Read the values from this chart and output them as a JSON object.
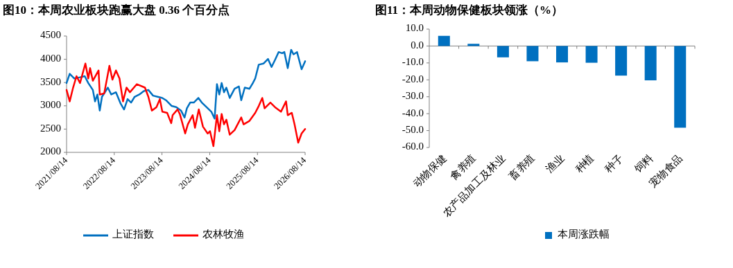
{
  "chart_data": [
    {
      "type": "line",
      "title": "图10：本周农业板块跑赢大盘 0.36 个百分点",
      "legend": "bottom",
      "line_style": "solid",
      "xlim": [
        "2021-08-14",
        "2026-08-14"
      ],
      "xticks": [
        {
          "value": "2021-08-14",
          "label": "2021/08/14"
        },
        {
          "value": "2022-08-14",
          "label": "2022/08/14"
        },
        {
          "value": "2023-08-14",
          "label": "2023/08/14"
        },
        {
          "value": "2024-08-14",
          "label": "2024/08/14"
        },
        {
          "value": "2025-08-14",
          "label": "2025/08/14"
        },
        {
          "value": "2026-08-14",
          "label": "2026/08/14"
        }
      ],
      "ylim": [
        2000,
        4500
      ],
      "yticks": [
        2000,
        2500,
        3000,
        3500,
        4000,
        4500
      ],
      "series": [
        {
          "name": "上证指数",
          "color": "#0070c0",
          "x": [
            "2021-08-14",
            "2021-09-07",
            "2021-10-12",
            "2021-11-25",
            "2021-12-31",
            "2022-01-27",
            "2022-03-03",
            "2022-03-20",
            "2022-04-07",
            "2022-04-25",
            "2022-05-12",
            "2022-06-26",
            "2022-07-22",
            "2022-08-27",
            "2022-10-02",
            "2022-10-28",
            "2022-11-24",
            "2022-12-21",
            "2023-01-17",
            "2023-02-22",
            "2023-03-28",
            "2023-05-02",
            "2023-06-07",
            "2023-07-12",
            "2023-08-17",
            "2023-09-14",
            "2023-10-28",
            "2023-12-02",
            "2024-01-07",
            "2024-02-03",
            "2024-02-21",
            "2024-03-17",
            "2024-04-14",
            "2024-05-19",
            "2024-06-14",
            "2024-07-20",
            "2024-08-26",
            "2024-09-20",
            "2024-10-08",
            "2024-10-26",
            "2024-11-13",
            "2024-12-01",
            "2024-12-19",
            "2025-01-14",
            "2025-02-20",
            "2025-03-25",
            "2025-04-12",
            "2025-05-09",
            "2025-06-14",
            "2025-07-10",
            "2025-07-28",
            "2025-08-24",
            "2025-09-29",
            "2025-11-03",
            "2025-11-30",
            "2025-12-26",
            "2026-01-23",
            "2026-02-19",
            "2026-03-08",
            "2026-04-03",
            "2026-04-29",
            "2026-05-17",
            "2026-06-13",
            "2026-07-18",
            "2026-08-14"
          ],
          "values": [
            3490,
            3687,
            3588,
            3613,
            3637,
            3490,
            3341,
            3095,
            3243,
            2898,
            3194,
            3391,
            3243,
            3292,
            3046,
            2922,
            3144,
            3070,
            3194,
            3243,
            3317,
            3341,
            3218,
            3194,
            3169,
            3120,
            2996,
            2972,
            2898,
            2750,
            2947,
            3070,
            3070,
            3169,
            3070,
            2972,
            2873,
            2725,
            3465,
            3243,
            3490,
            3292,
            3391,
            3169,
            3366,
            3415,
            3120,
            3391,
            3366,
            3490,
            3588,
            3884,
            3908,
            4007,
            3834,
            3982,
            4155,
            4130,
            4155,
            3810,
            4204,
            4106,
            4155,
            3785,
            3958
          ]
        },
        {
          "name": "农林牧渔",
          "color": "#ff0000",
          "x": [
            "2021-08-14",
            "2021-09-07",
            "2021-10-03",
            "2021-10-29",
            "2021-11-25",
            "2022-01-05",
            "2022-01-27",
            "2022-02-10",
            "2022-03-03",
            "2022-04-16",
            "2022-04-25",
            "2022-05-29",
            "2022-07-08",
            "2022-07-31",
            "2022-08-27",
            "2022-09-23",
            "2022-10-20",
            "2022-11-16",
            "2022-12-12",
            "2023-02-03",
            "2023-04-06",
            "2023-05-02",
            "2023-05-29",
            "2023-07-03",
            "2023-07-29",
            "2023-08-17",
            "2023-09-23",
            "2023-10-24",
            "2023-11-04",
            "2023-12-11",
            "2023-12-29",
            "2024-02-08",
            "2024-02-28",
            "2024-04-05",
            "2024-04-23",
            "2024-05-22",
            "2024-06-23",
            "2024-07-29",
            "2024-08-16",
            "2024-09-11",
            "2024-10-08",
            "2024-10-26",
            "2024-11-13",
            "2024-12-01",
            "2024-12-19",
            "2025-01-14",
            "2025-02-20",
            "2025-04-12",
            "2025-04-30",
            "2025-06-14",
            "2025-07-28",
            "2025-08-24",
            "2025-09-20",
            "2025-10-08",
            "2025-11-21",
            "2025-12-26",
            "2026-02-10",
            "2026-03-21",
            "2026-04-03",
            "2026-05-04",
            "2026-05-25",
            "2026-06-22",
            "2026-07-18",
            "2026-08-14"
          ],
          "values": [
            3341,
            3095,
            3391,
            3637,
            3490,
            3908,
            3588,
            3810,
            3539,
            3760,
            3243,
            3267,
            3859,
            3563,
            3760,
            3588,
            3095,
            3391,
            3292,
            3465,
            3391,
            3194,
            2898,
            2972,
            3144,
            2873,
            2849,
            2627,
            2799,
            2922,
            2824,
            2405,
            2602,
            2799,
            2528,
            2922,
            2553,
            2405,
            2454,
            2134,
            2799,
            2454,
            2824,
            2602,
            2701,
            2380,
            2479,
            2750,
            2602,
            2676,
            2849,
            2996,
            3169,
            2947,
            3070,
            2972,
            2873,
            3095,
            2799,
            2849,
            2602,
            2208,
            2405,
            2503
          ]
        }
      ]
    },
    {
      "type": "bar",
      "title": "图11：本周动物保健板块领涨（%）",
      "legend": "bottom",
      "categories": [
        "动物保健",
        "禽养殖",
        "农产品加工及林业",
        "畜养殖",
        "渔业",
        "种植",
        "种子",
        "饲料",
        "宠物食品"
      ],
      "ylim": [
        -60,
        10
      ],
      "yticks": [
        {
          "value": 10,
          "label": "10.0"
        },
        {
          "value": 0,
          "label": "0.0"
        },
        {
          "value": -10,
          "label": "-10.0"
        },
        {
          "value": -20,
          "label": "-20.0"
        },
        {
          "value": -30,
          "label": "-30.0"
        },
        {
          "value": -40,
          "label": "-40.0"
        },
        {
          "value": -50,
          "label": "-50.0"
        },
        {
          "value": -60,
          "label": "-60.0"
        }
      ],
      "series": [
        {
          "name": "本周涨跌幅",
          "color": "#0070c0",
          "values": [
            6.0,
            1.3,
            -6.7,
            -9.0,
            -9.7,
            -9.9,
            -17.5,
            -20.3,
            -48.3
          ]
        }
      ]
    }
  ]
}
